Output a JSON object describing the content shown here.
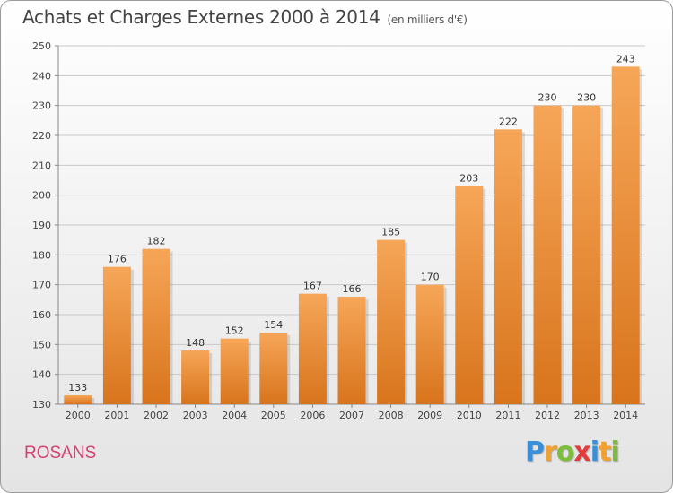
{
  "header": {
    "title": "Achats et Charges Externes 2000 à 2014",
    "subtitle": "(en milliers d'€)"
  },
  "footer": {
    "commune": "ROSANS",
    "logo_letters": [
      {
        "char": "P",
        "color": "#3a8fd6"
      },
      {
        "char": "r",
        "color": "#f2a030"
      },
      {
        "char": "o",
        "color": "#7cbd3a"
      },
      {
        "char": "x",
        "color": "#e23c3c"
      },
      {
        "char": "i",
        "color": "#3a8fd6"
      },
      {
        "char": "t",
        "color": "#f2a030"
      },
      {
        "char": "i",
        "color": "#7cbd3a"
      }
    ]
  },
  "chart_data": {
    "type": "bar",
    "title": "Achats et Charges Externes 2000 à 2014",
    "subtitle": "(en milliers d'€)",
    "categories": [
      "2000",
      "2001",
      "2002",
      "2003",
      "2004",
      "2005",
      "2006",
      "2007",
      "2008",
      "2009",
      "2010",
      "2011",
      "2012",
      "2013",
      "2014"
    ],
    "values": [
      133,
      176,
      182,
      148,
      152,
      154,
      167,
      166,
      185,
      170,
      203,
      222,
      230,
      230,
      243
    ],
    "ylim": [
      130,
      250
    ],
    "yticks": [
      130,
      140,
      150,
      160,
      170,
      180,
      190,
      200,
      210,
      220,
      230,
      240,
      250
    ],
    "grid": true,
    "bar_color_top": "#f6a658",
    "bar_color_bottom": "#d8741c"
  }
}
